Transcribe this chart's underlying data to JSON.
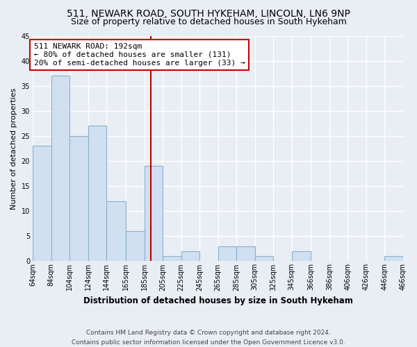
{
  "title": "511, NEWARK ROAD, SOUTH HYKEHAM, LINCOLN, LN6 9NP",
  "subtitle": "Size of property relative to detached houses in South Hykeham",
  "xlabel": "Distribution of detached houses by size in South Hykeham",
  "ylabel": "Number of detached properties",
  "bar_color": "#d0e0f0",
  "bar_edge_color": "#8ab0cc",
  "bins": [
    64,
    84,
    104,
    124,
    144,
    165,
    185,
    205,
    225,
    245,
    265,
    285,
    305,
    325,
    345,
    366,
    386,
    406,
    426,
    446,
    466
  ],
  "counts": [
    23,
    37,
    25,
    27,
    12,
    6,
    19,
    1,
    2,
    0,
    3,
    3,
    1,
    0,
    2,
    0,
    0,
    0,
    0,
    1
  ],
  "tick_labels": [
    "64sqm",
    "84sqm",
    "104sqm",
    "124sqm",
    "144sqm",
    "165sqm",
    "185sqm",
    "205sqm",
    "225sqm",
    "245sqm",
    "265sqm",
    "285sqm",
    "305sqm",
    "325sqm",
    "345sqm",
    "366sqm",
    "386sqm",
    "406sqm",
    "426sqm",
    "446sqm",
    "466sqm"
  ],
  "property_size": 192,
  "ref_line_color": "#bb0000",
  "annotation_text": "511 NEWARK ROAD: 192sqm\n← 80% of detached houses are smaller (131)\n20% of semi-detached houses are larger (33) →",
  "annotation_box_color": "#ffffff",
  "annotation_box_edge_color": "#cc0000",
  "ylim": [
    0,
    45
  ],
  "yticks": [
    0,
    5,
    10,
    15,
    20,
    25,
    30,
    35,
    40,
    45
  ],
  "footnote": "Contains HM Land Registry data © Crown copyright and database right 2024.\nContains public sector information licensed under the Open Government Licence v3.0.",
  "bg_color": "#e8eef4",
  "grid_color": "#ffffff",
  "title_fontsize": 10,
  "subtitle_fontsize": 9,
  "xlabel_fontsize": 8.5,
  "ylabel_fontsize": 8,
  "tick_fontsize": 7,
  "annotation_fontsize": 8,
  "footnote_fontsize": 6.5
}
